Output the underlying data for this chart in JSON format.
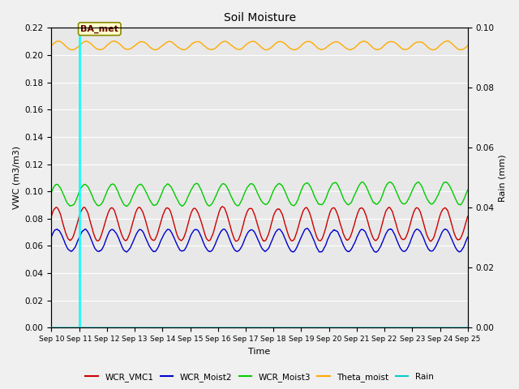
{
  "title": "Soil Moisture",
  "ylabel_left": "VWC (m3/m3)",
  "ylabel_right": "Rain (mm)",
  "xlabel": "Time",
  "ylim_left": [
    0.0,
    0.22
  ],
  "ylim_right": [
    0.0,
    0.1
  ],
  "annotation_text": "BA_met",
  "vline_x_day": 1.0,
  "x_tick_labels": [
    "Sep 10",
    "Sep 11",
    "Sep 12",
    "Sep 13",
    "Sep 14",
    "Sep 15",
    "Sep 16",
    "Sep 17",
    "Sep 18",
    "Sep 19",
    "Sep 20",
    "Sep 21",
    "Sep 22",
    "Sep 23",
    "Sep 24",
    "Sep 25"
  ],
  "legend_labels": [
    "WCR_VMC1",
    "WCR_Moist2",
    "WCR_Moist3",
    "Theta_moist",
    "Rain"
  ],
  "legend_colors": [
    "#cc0000",
    "#0000cc",
    "#00cc00",
    "#ffaa00",
    "#00cccc"
  ],
  "line_colors": {
    "WCR_VMC1": "#cc0000",
    "WCR_Moist2": "#0000cc",
    "WCR_Moist3": "#00cc00",
    "Theta_moist": "#ffaa00",
    "Rain": "#00cccc"
  },
  "plot_bg": "#e8e8e8",
  "fig_bg": "#f0f0f0",
  "grid_color": "#ffffff",
  "n_points": 1500,
  "n_days": 15
}
